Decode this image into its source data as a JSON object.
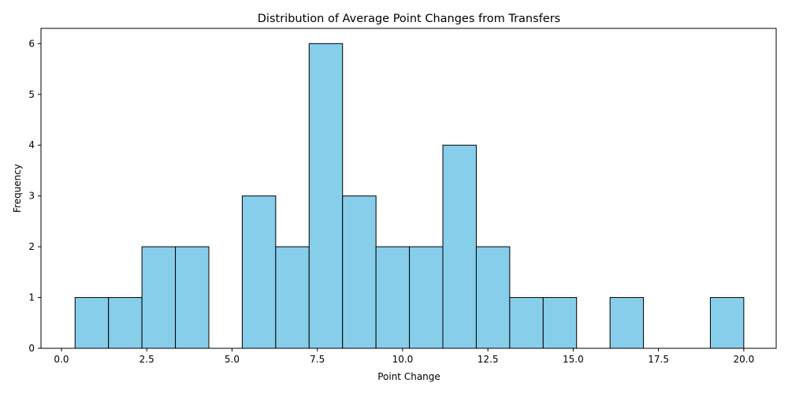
{
  "chart_data": {
    "type": "bar",
    "title": "Distribution of Average Point Changes from Transfers",
    "xlabel": "Point Change",
    "ylabel": "Frequency",
    "xlim": [
      -0.6,
      20.95
    ],
    "ylim": [
      0,
      6.3
    ],
    "x_ticks": [
      0.0,
      2.5,
      5.0,
      7.5,
      10.0,
      12.5,
      15.0,
      17.5,
      20.0
    ],
    "x_tick_labels": [
      "0.0",
      "2.5",
      "5.0",
      "7.5",
      "10.0",
      "12.5",
      "15.0",
      "17.5",
      "20.0"
    ],
    "y_ticks": [
      0,
      1,
      2,
      3,
      4,
      5,
      6
    ],
    "y_tick_labels": [
      "0",
      "1",
      "2",
      "3",
      "4",
      "5",
      "6"
    ],
    "bin_start": 0.4,
    "bin_end": 20.0,
    "counts": [
      1,
      1,
      2,
      2,
      0,
      3,
      2,
      6,
      3,
      2,
      2,
      4,
      2,
      1,
      1,
      0,
      1,
      0,
      0,
      1
    ],
    "colors": {
      "bar_fill": "#87ceeb",
      "bar_edge": "#000000"
    },
    "grid": false,
    "legend": "none"
  }
}
